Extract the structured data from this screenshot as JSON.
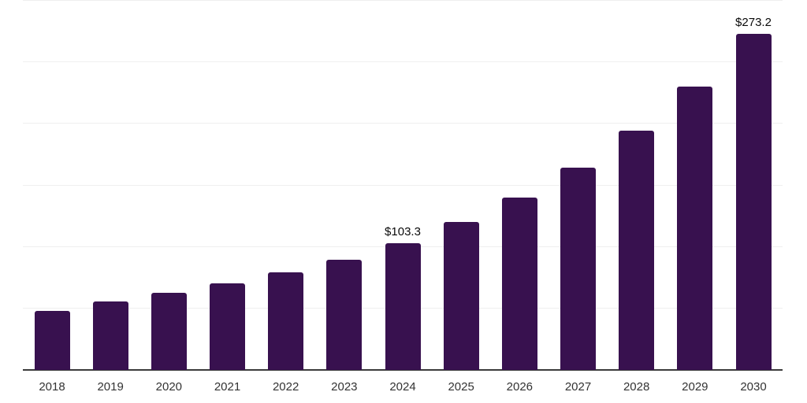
{
  "chart_data": {
    "type": "bar",
    "title": "",
    "xlabel": "",
    "ylabel": "",
    "categories": [
      "2018",
      "2019",
      "2020",
      "2021",
      "2022",
      "2023",
      "2024",
      "2025",
      "2026",
      "2027",
      "2028",
      "2029",
      "2030"
    ],
    "values": [
      47.8,
      55.9,
      62.8,
      70.1,
      79.5,
      89.7,
      103.3,
      120.2,
      139.9,
      164.3,
      194.3,
      230.3,
      273.2
    ],
    "data_labels": {
      "2024": "$103.3",
      "2030": "$273.2"
    },
    "ylim": [
      0,
      300
    ],
    "gridline_step": 50,
    "grid": true,
    "legend": false,
    "y_axis_labels_visible": false,
    "colors": {
      "bar": "#38114f",
      "gridline": "#efefef",
      "axis_line": "#3b3b3b",
      "x_tick_label": "#333333",
      "data_label": "#0a0a0a",
      "background": "#ffffff"
    }
  }
}
